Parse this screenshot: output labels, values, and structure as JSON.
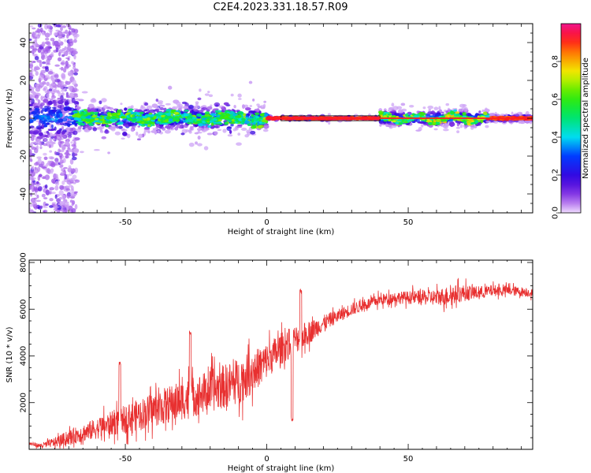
{
  "title": "C2E4.2023.331.18.57.R09",
  "colors": {
    "snr_line": "#e83030",
    "zero_line": "#000000",
    "band_core": "#ff2020"
  },
  "chart_data": [
    {
      "type": "heatmap",
      "xlabel": "Height of straight line (km)",
      "ylabel": "Frequency (Hz)",
      "xlim": [
        -84,
        94
      ],
      "ylim": [
        -50,
        50
      ],
      "xticks": [
        -50,
        0,
        50
      ],
      "yticks": [
        -40,
        -20,
        0,
        20,
        40
      ],
      "colorbar": {
        "label": "Normalized spectral amplitude",
        "range": [
          0.0,
          1.0
        ],
        "ticks": [
          "0.0",
          "0.2",
          "0.4",
          "0.6",
          "0.8"
        ],
        "colormap": "rainbow (purple-blue-cyan-green-yellow-red-magenta)"
      },
      "features": [
        {
          "region": [
            -84,
            -67
          ],
          "description": "broad noisy spread across frequency"
        },
        {
          "region": [
            -67,
            0
          ],
          "description": "band near 0 Hz, width about +/-8 Hz"
        },
        {
          "region": [
            0,
            40
          ],
          "description": "narrow saturated band at 0 Hz"
        },
        {
          "region": [
            40,
            78
          ],
          "description": "band near 0 Hz with small fluctuations"
        },
        {
          "region": [
            78,
            94
          ],
          "description": "narrow saturated band at 0 Hz"
        }
      ]
    },
    {
      "type": "line",
      "xlabel": "Height of straight line (km)",
      "ylabel": "SNR (10 * v/v)",
      "xlim": [
        -84,
        94
      ],
      "ylim": [
        0,
        8100
      ],
      "xticks": [
        -50,
        0,
        50
      ],
      "yticks": [
        2000,
        4000,
        6000,
        8000
      ],
      "series": [
        {
          "x": [
            -84,
            -80,
            -75,
            -70,
            -65,
            -60,
            -55,
            -50,
            -45,
            -40,
            -35,
            -30,
            -25,
            -20,
            -15,
            -10,
            -5,
            0,
            5,
            10,
            15,
            20,
            25,
            30,
            35,
            40,
            45,
            50,
            55,
            60,
            65,
            70,
            75,
            80,
            85,
            90,
            94
          ],
          "y": [
            250,
            150,
            300,
            500,
            700,
            900,
            1100,
            1300,
            1500,
            1700,
            1900,
            2100,
            2300,
            2500,
            2700,
            2900,
            3300,
            3800,
            4300,
            4700,
            5000,
            5400,
            5700,
            6000,
            6200,
            6400,
            6500,
            6500,
            6500,
            6500,
            6600,
            6700,
            6700,
            6800,
            6800,
            6750,
            6700
          ],
          "noise": [
            100,
            150,
            300,
            450,
            550,
            650,
            750,
            850,
            950,
            1050,
            1150,
            1200,
            1250,
            1300,
            1350,
            1400,
            1300,
            1100,
            1000,
            900,
            700,
            500,
            400,
            400,
            350,
            350,
            350,
            400,
            450,
            500,
            600,
            500,
            400,
            350,
            300,
            300,
            250
          ]
        }
      ],
      "notable_values": [
        {
          "x": 9,
          "y": 1300
        },
        {
          "x": 12,
          "y": 6800
        },
        {
          "x": -52,
          "y": 3650
        },
        {
          "x": -27,
          "y": 5000
        }
      ]
    }
  ]
}
